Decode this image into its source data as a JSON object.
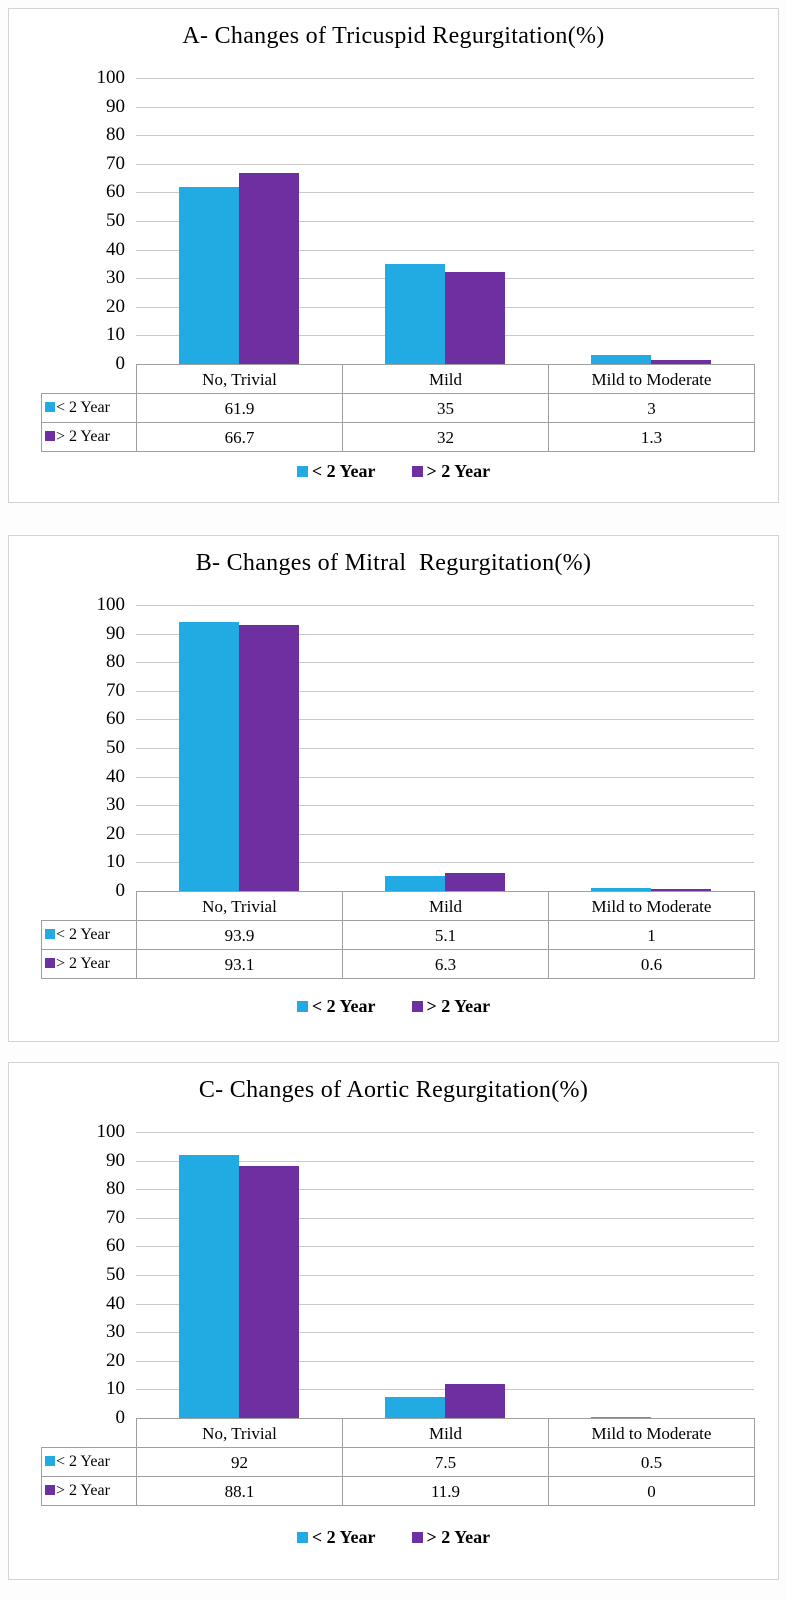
{
  "colors": {
    "series1": "#21abe2",
    "series2": "#6e2fa0",
    "gridline": "#c9c9c9",
    "table_border": "#9f9f9f",
    "text": "#000000"
  },
  "legend": {
    "labels": [
      "< 2 Year",
      "> 2 Year"
    ]
  },
  "chart_data": [
    {
      "type": "bar",
      "panel_label": "A",
      "title": "A- Changes of Tricuspid Regurgitation(%)",
      "categories": [
        "No, Trivial",
        "Mild",
        "Mild to Moderate"
      ],
      "series": [
        {
          "name": "< 2 Year",
          "color": "#21abe2",
          "values": [
            61.9,
            35,
            3
          ]
        },
        {
          "name": "> 2 Year",
          "color": "#6e2fa0",
          "values": [
            66.7,
            32,
            1.3
          ]
        }
      ],
      "ylim": [
        0,
        100
      ],
      "yticks": [
        100,
        90,
        80,
        70,
        60,
        50,
        40,
        30,
        20,
        10,
        0
      ],
      "grid": true,
      "legend_position": "bottom",
      "data_table_shown": true
    },
    {
      "type": "bar",
      "panel_label": "B",
      "title": "B- Changes of Mitral  Regurgitation(%)",
      "categories": [
        "No, Trivial",
        "Mild",
        "Mild to Moderate"
      ],
      "series": [
        {
          "name": "< 2 Year",
          "color": "#21abe2",
          "values": [
            93.9,
            5.1,
            1
          ]
        },
        {
          "name": "> 2 Year",
          "color": "#6e2fa0",
          "values": [
            93.1,
            6.3,
            0.6
          ]
        }
      ],
      "ylim": [
        0,
        100
      ],
      "yticks": [
        100,
        90,
        80,
        70,
        60,
        50,
        40,
        30,
        20,
        10,
        0
      ],
      "grid": true,
      "legend_position": "bottom",
      "data_table_shown": true
    },
    {
      "type": "bar",
      "panel_label": "C",
      "title": "C- Changes of Aortic Regurgitation(%)",
      "categories": [
        "No, Trivial",
        "Mild",
        "Mild to Moderate"
      ],
      "series": [
        {
          "name": "< 2 Year",
          "color": "#21abe2",
          "values": [
            92,
            7.5,
            0.5
          ]
        },
        {
          "name": "> 2 Year",
          "color": "#6e2fa0",
          "values": [
            88.1,
            11.9,
            0
          ]
        }
      ],
      "ylim": [
        0,
        100
      ],
      "yticks": [
        100,
        90,
        80,
        70,
        60,
        50,
        40,
        30,
        20,
        10,
        0
      ],
      "grid": true,
      "legend_position": "bottom",
      "data_table_shown": true
    }
  ]
}
